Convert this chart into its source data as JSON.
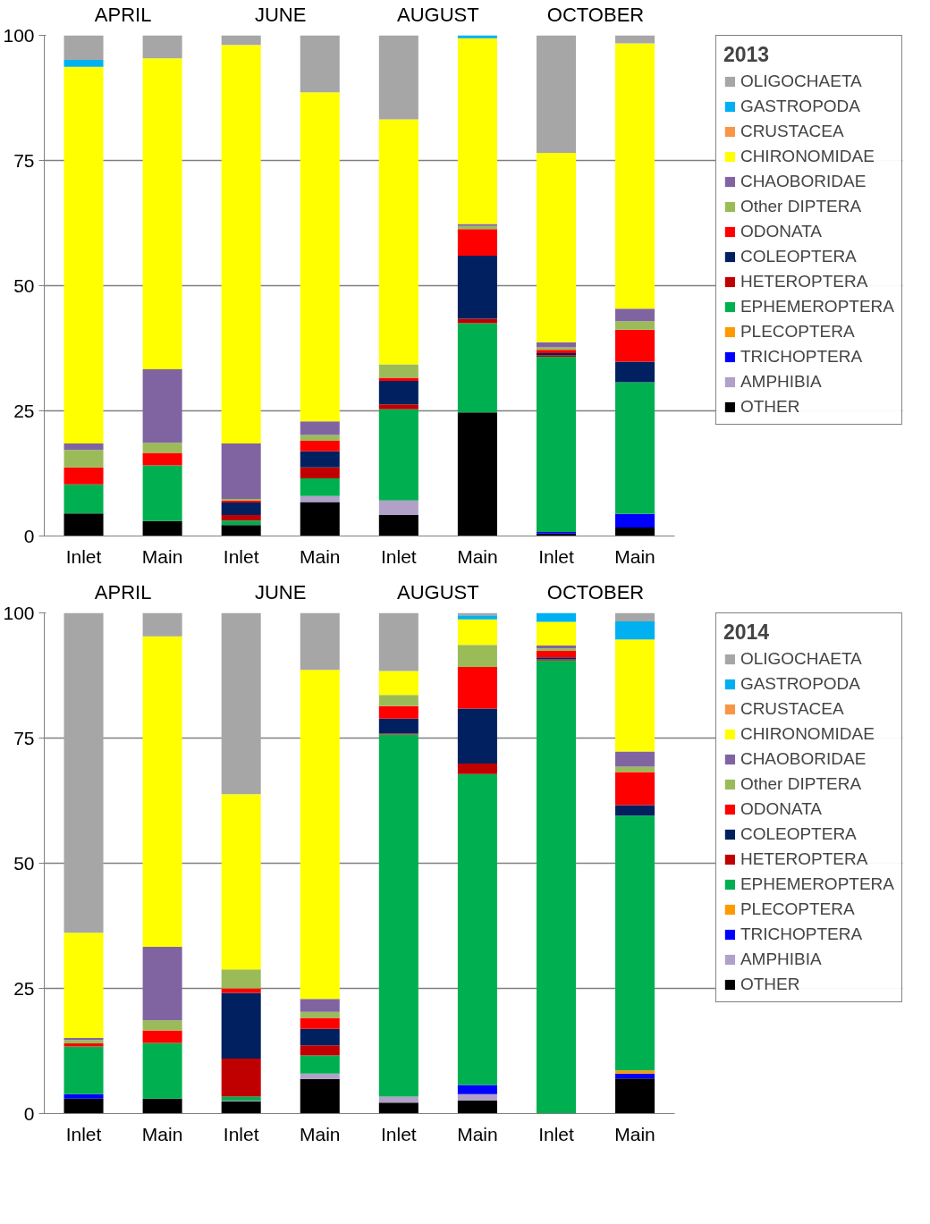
{
  "chart_data": [
    {
      "type": "bar",
      "stacked": true,
      "legend_title": "2013",
      "legend": "right",
      "grid": "y",
      "annotations": [
        "APRIL",
        "JUNE",
        "AUGUST",
        "OCTOBER"
      ],
      "categories": [
        "Inlet",
        "Main",
        "Inlet",
        "Main",
        "Inlet",
        "Main",
        "Inlet",
        "Main"
      ],
      "ylim": [
        0,
        100
      ],
      "yticks": [
        0,
        25,
        50,
        75,
        100
      ],
      "series": [
        {
          "name": "OTHER",
          "color": "#000000",
          "values": [
            4.5,
            3.0,
            2.2,
            6.8,
            4.2,
            24.7,
            0.5,
            1.7
          ]
        },
        {
          "name": "AMPHIBIA",
          "color": "#b1a0c7",
          "values": [
            0,
            0,
            0,
            1.2,
            2.9,
            0,
            0,
            0
          ]
        },
        {
          "name": "TRICHOPTERA",
          "color": "#0000ff",
          "values": [
            0,
            0,
            0,
            0,
            0,
            0,
            0.3,
            2.7
          ]
        },
        {
          "name": "PLECOPTERA",
          "color": "#ff9900",
          "values": [
            0,
            0,
            0,
            0,
            0,
            0,
            0,
            0
          ]
        },
        {
          "name": "EPHEMEROPTERA",
          "color": "#00b050",
          "values": [
            5.8,
            11.1,
            0.9,
            3.5,
            18.2,
            17.8,
            35.0,
            26.3
          ]
        },
        {
          "name": "HETEROPTERA",
          "color": "#c00000",
          "values": [
            0,
            0,
            1.1,
            2.2,
            1.0,
            0.9,
            0.3,
            0
          ]
        },
        {
          "name": "COLEOPTERA",
          "color": "#002060",
          "values": [
            0,
            0,
            2.5,
            3.2,
            4.7,
            12.6,
            0.4,
            4.1
          ]
        },
        {
          "name": "ODONATA",
          "color": "#ff0000",
          "values": [
            3.4,
            2.5,
            0.4,
            2.1,
            0.6,
            5.3,
            0.7,
            6.4
          ]
        },
        {
          "name": "Other DIPTERA",
          "color": "#9bbb59",
          "values": [
            3.5,
            2.0,
            0.3,
            1.2,
            2.7,
            0.6,
            0.5,
            1.7
          ]
        },
        {
          "name": "CHAOBORIDAE",
          "color": "#8064a2",
          "values": [
            1.3,
            14.7,
            11.1,
            2.7,
            0,
            0.4,
            1.0,
            2.5
          ]
        },
        {
          "name": "CHIRONOMIDAE",
          "color": "#ffff00",
          "values": [
            75.2,
            62.1,
            79.6,
            65.7,
            48.9,
            37.1,
            37.8,
            53.0
          ]
        },
        {
          "name": "CRUSTACEA",
          "color": "#f79646",
          "values": [
            0,
            0,
            0,
            0,
            0,
            0,
            0,
            0
          ]
        },
        {
          "name": "GASTROPODA",
          "color": "#00b0f0",
          "values": [
            1.4,
            0,
            0,
            0,
            0,
            0.6,
            0,
            0
          ]
        },
        {
          "name": "OLIGOCHAETA",
          "color": "#a6a6a6",
          "values": [
            4.9,
            4.6,
            1.9,
            11.4,
            16.8,
            0,
            23.5,
            1.6
          ]
        }
      ]
    },
    {
      "type": "bar",
      "stacked": true,
      "legend_title": "2014",
      "legend": "right",
      "grid": "y",
      "annotations": [
        "APRIL",
        "JUNE",
        "AUGUST",
        "OCTOBER"
      ],
      "categories": [
        "Inlet",
        "Main",
        "Inlet",
        "Main",
        "Inlet",
        "Main",
        "Inlet",
        "Main"
      ],
      "ylim": [
        0,
        100
      ],
      "yticks": [
        0,
        25,
        50,
        75,
        100
      ],
      "series": [
        {
          "name": "OTHER",
          "color": "#000000",
          "values": [
            3.0,
            3.0,
            2.4,
            6.9,
            2.2,
            2.6,
            0,
            7.0
          ]
        },
        {
          "name": "AMPHIBIA",
          "color": "#b1a0c7",
          "values": [
            0,
            0,
            0.2,
            1.1,
            1.2,
            1.3,
            0,
            0
          ]
        },
        {
          "name": "TRICHOPTERA",
          "color": "#0000ff",
          "values": [
            0.9,
            0,
            0,
            0,
            0,
            1.8,
            0,
            1.0
          ]
        },
        {
          "name": "PLECOPTERA",
          "color": "#ff9900",
          "values": [
            0,
            0,
            0,
            0,
            0,
            0,
            0,
            0.6
          ]
        },
        {
          "name": "EPHEMEROPTERA",
          "color": "#00b050",
          "values": [
            9.5,
            11.1,
            0.8,
            3.6,
            72.3,
            62.1,
            90.5,
            50.9
          ]
        },
        {
          "name": "HETEROPTERA",
          "color": "#c00000",
          "values": [
            0,
            0,
            7.6,
            2.0,
            0.2,
            2.1,
            0.2,
            0
          ]
        },
        {
          "name": "COLEOPTERA",
          "color": "#002060",
          "values": [
            0,
            0,
            13.1,
            3.3,
            3.0,
            11.0,
            0.4,
            2.1
          ]
        },
        {
          "name": "ODONATA",
          "color": "#ff0000",
          "values": [
            0.6,
            2.5,
            0.9,
            2.2,
            2.5,
            8.3,
            1.3,
            6.6
          ]
        },
        {
          "name": "Other DIPTERA",
          "color": "#9bbb59",
          "values": [
            0.7,
            2.0,
            3.8,
            1.2,
            2.2,
            4.4,
            0.5,
            1.1
          ]
        },
        {
          "name": "CHAOBORIDAE",
          "color": "#8064a2",
          "values": [
            0.4,
            14.7,
            0,
            2.6,
            0,
            0,
            0.6,
            3.0
          ]
        },
        {
          "name": "CHIRONOMIDAE",
          "color": "#ffff00",
          "values": [
            21.0,
            62.0,
            35.0,
            65.7,
            4.8,
            5.1,
            4.7,
            22.4
          ]
        },
        {
          "name": "CRUSTACEA",
          "color": "#f79646",
          "values": [
            0,
            0,
            0,
            0,
            0,
            0,
            0,
            0
          ]
        },
        {
          "name": "GASTROPODA",
          "color": "#00b0f0",
          "values": [
            0,
            0,
            0,
            0,
            0,
            0.8,
            1.8,
            3.6
          ]
        },
        {
          "name": "OLIGOCHAETA",
          "color": "#a6a6a6",
          "values": [
            63.9,
            4.7,
            36.2,
            11.4,
            11.6,
            0.5,
            0,
            1.7
          ]
        }
      ]
    }
  ]
}
